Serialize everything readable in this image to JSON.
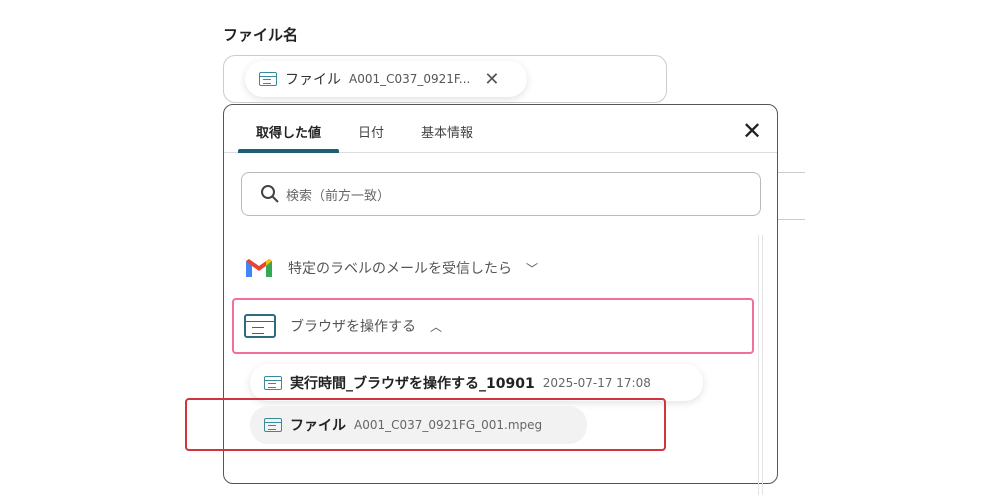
{
  "field": {
    "label": "ファイル名",
    "chip": {
      "icon": "browser-icon",
      "title": "ファイル",
      "value": "A001_C037_0921F..."
    }
  },
  "popup": {
    "tabs": [
      {
        "label": "取得した値",
        "active": true
      },
      {
        "label": "日付"
      },
      {
        "label": "基本情報"
      }
    ],
    "search_placeholder": "検索（前方一致）",
    "sections": [
      {
        "icon": "gmail-icon",
        "label": "特定のラベルのメールを受信したら",
        "expanded": false
      },
      {
        "icon": "browser-icon",
        "label": "ブラウザを操作する",
        "expanded": true
      }
    ],
    "items": [
      {
        "title": "実行時間_ブラウザを操作する_10901",
        "value": "2025-07-17 17:08"
      },
      {
        "title": "ファイル",
        "value": "A001_C037_0921FG_001.mpeg"
      }
    ]
  },
  "colors": {
    "accent": "#1f5f73",
    "highlight_pink": "#f06ea0",
    "highlight_red": "#d0343f"
  }
}
